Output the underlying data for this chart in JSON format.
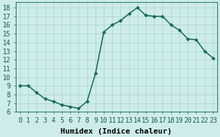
{
  "x": [
    0,
    1,
    2,
    3,
    4,
    5,
    6,
    7,
    8,
    9,
    10,
    11,
    12,
    13,
    14,
    15,
    16,
    17,
    18,
    19,
    20,
    21,
    22,
    23
  ],
  "y": [
    9.0,
    9.0,
    8.2,
    7.5,
    7.2,
    6.8,
    6.6,
    6.4,
    7.2,
    10.4,
    15.2,
    16.0,
    16.5,
    17.3,
    18.0,
    17.1,
    17.0,
    17.0,
    16.0,
    15.4,
    14.4,
    14.3,
    13.0,
    12.2
  ],
  "line_color": "#1a6b5a",
  "marker": "D",
  "marker_size": 2.5,
  "bg_color": "#cdecea",
  "grid_color": "#b0d8d4",
  "xlabel": "Humidex (Indice chaleur)",
  "xlim": [
    -0.5,
    23.5
  ],
  "ylim": [
    6,
    18.6
  ],
  "yticks": [
    6,
    7,
    8,
    9,
    10,
    11,
    12,
    13,
    14,
    15,
    16,
    17,
    18
  ],
  "xticks": [
    0,
    1,
    2,
    3,
    4,
    5,
    6,
    7,
    8,
    9,
    10,
    11,
    12,
    13,
    14,
    15,
    16,
    17,
    18,
    19,
    20,
    21,
    22,
    23
  ],
  "xtick_labels": [
    "0",
    "1",
    "2",
    "3",
    "4",
    "5",
    "6",
    "7",
    "8",
    "9",
    "10",
    "11",
    "12",
    "13",
    "14",
    "15",
    "16",
    "17",
    "18",
    "19",
    "20",
    "21",
    "22",
    "23"
  ],
  "xlabel_fontsize": 8,
  "tick_fontsize": 7,
  "line_width": 1.2
}
